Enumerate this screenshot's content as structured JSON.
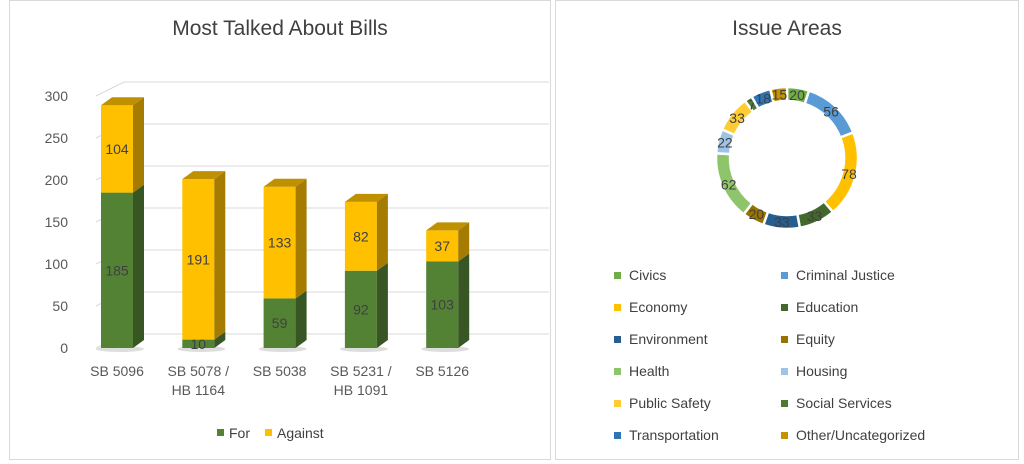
{
  "chart_data": [
    {
      "type": "bar",
      "stacked": true,
      "title": "Most Talked About Bills",
      "categories": [
        [
          "SB 5096"
        ],
        [
          "SB 5078 /",
          "HB 1164"
        ],
        [
          "SB 5038"
        ],
        [
          "SB 5231 /",
          "HB 1091"
        ],
        [
          "SB 5126"
        ]
      ],
      "series": [
        {
          "name": "For",
          "color": "#548235",
          "side": "#375623",
          "top": "#4d7a30",
          "values": [
            185,
            10,
            59,
            92,
            103
          ]
        },
        {
          "name": "Against",
          "color": "#ffc000",
          "side": "#a67c00",
          "top": "#bf9000",
          "values": [
            104,
            191,
            133,
            82,
            37
          ]
        }
      ],
      "ylim": [
        0,
        300
      ],
      "yticks": [
        0,
        50,
        100,
        150,
        200,
        250,
        300
      ],
      "grid": true,
      "legend": "bottom"
    },
    {
      "type": "pie",
      "donut": true,
      "title": "Issue Areas",
      "labels": [
        "Civics",
        "Criminal Justice",
        "Economy",
        "Education",
        "Environment",
        "Equity",
        "Health",
        "Housing",
        "Public Safety",
        "Social Services",
        "Transportation",
        "Other/Uncategorized"
      ],
      "values": [
        20,
        56,
        78,
        33,
        33,
        20,
        62,
        22,
        33,
        7,
        18,
        15
      ],
      "colors": [
        "#70ad47",
        "#5b9bd5",
        "#ffc000",
        "#43682b",
        "#255e91",
        "#997300",
        "#8fc56a",
        "#9dc3e6",
        "#ffcd33",
        "#4e7a2f",
        "#2e75b6",
        "#c69200"
      ],
      "legend": "bottom"
    }
  ]
}
